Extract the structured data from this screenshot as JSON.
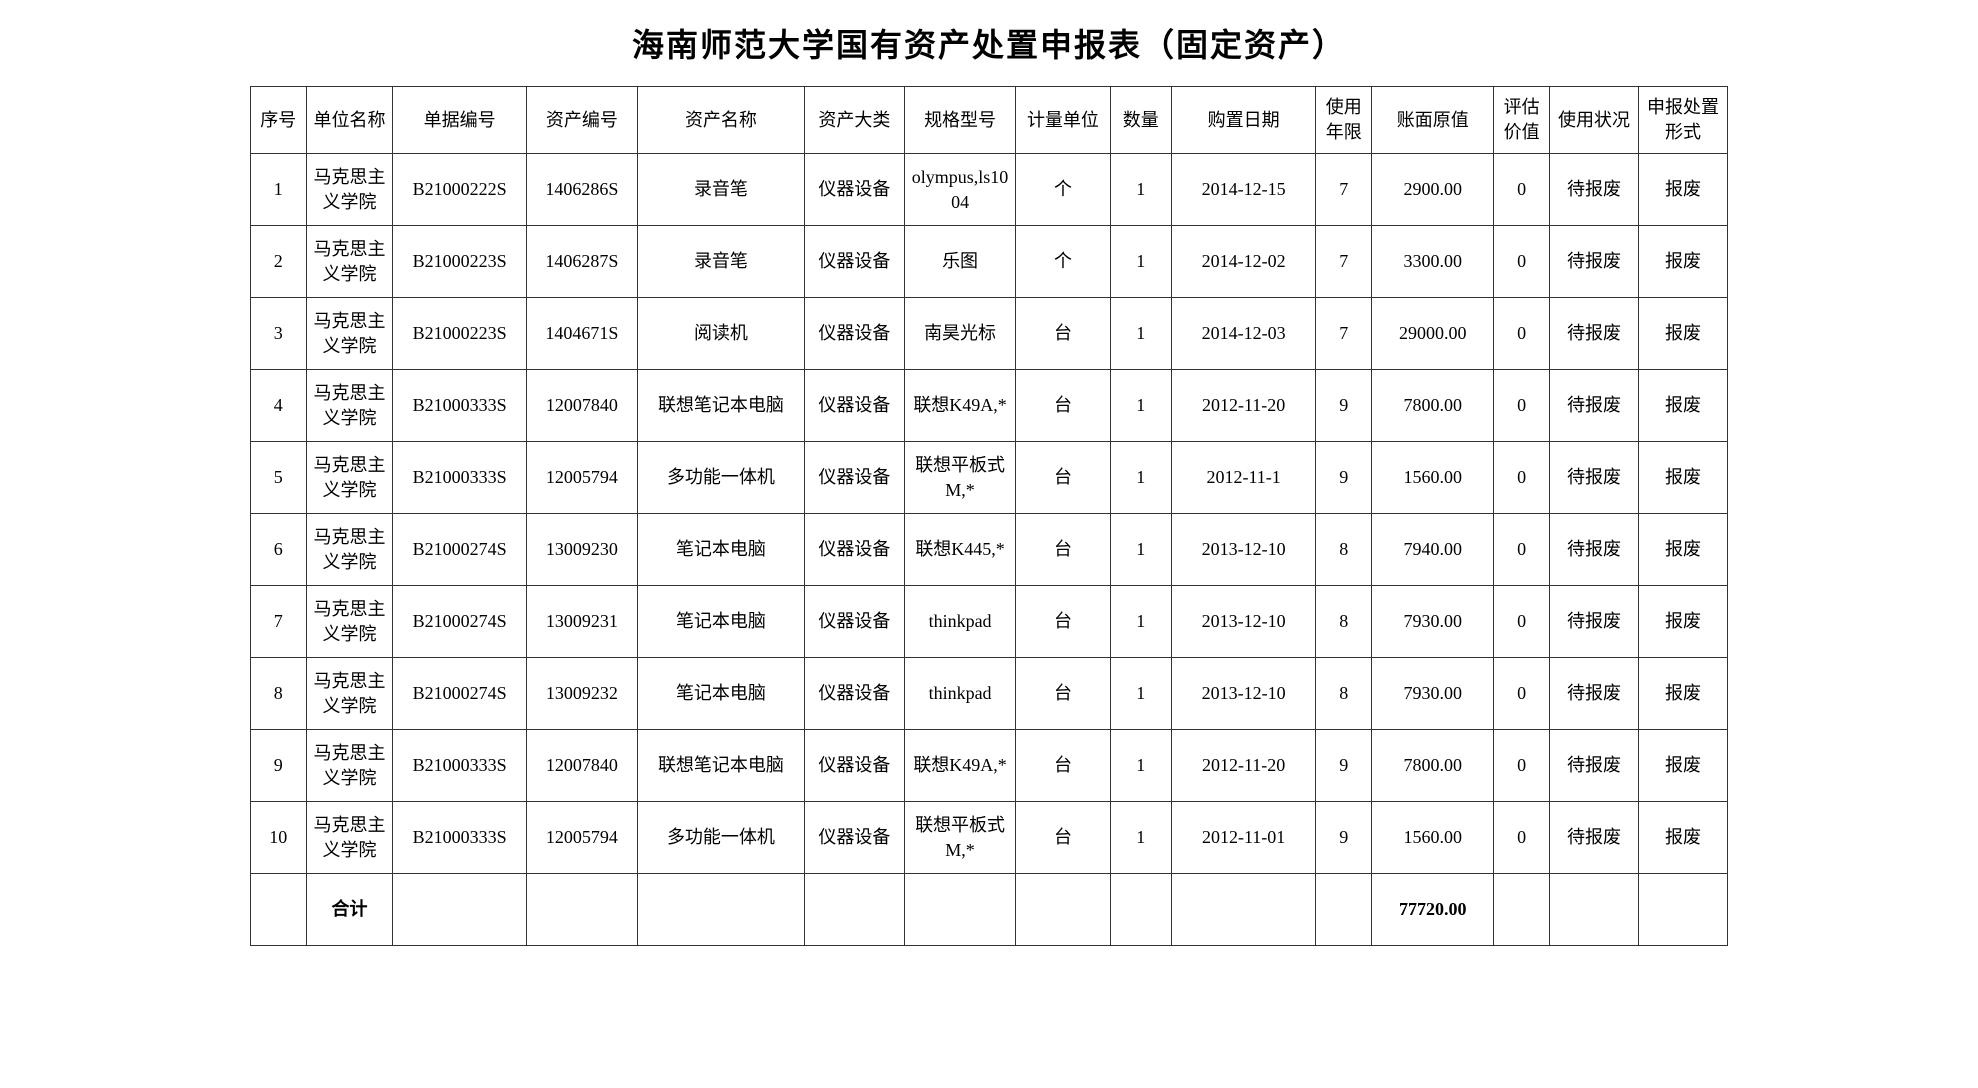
{
  "title": "海南师范大学国有资产处置申报表（固定资产）",
  "columns": [
    "序号",
    "单位名称",
    "单据编号",
    "资产编号",
    "资产名称",
    "资产大类",
    "规格型号",
    "计量单位",
    "数量",
    "购置日期",
    "使用年限",
    "账面原值",
    "评估价值",
    "使用状况",
    "申报处置形式"
  ],
  "rows": [
    {
      "seq": "1",
      "dept": "马克思主义学院",
      "docnum": "B21000222S",
      "assetnum": "1406286S",
      "assetname": "录音笔",
      "category": "仪器设备",
      "spec": "olympus,ls1004",
      "unit": "个",
      "qty": "1",
      "date": "2014-12-15",
      "years": "7",
      "value": "2900.00",
      "eval": "0",
      "status": "待报废",
      "disposal": "报废"
    },
    {
      "seq": "2",
      "dept": "马克思主义学院",
      "docnum": "B21000223S",
      "assetnum": "1406287S",
      "assetname": "录音笔",
      "category": "仪器设备",
      "spec": "乐图",
      "unit": "个",
      "qty": "1",
      "date": "2014-12-02",
      "years": "7",
      "value": "3300.00",
      "eval": "0",
      "status": "待报废",
      "disposal": "报废"
    },
    {
      "seq": "3",
      "dept": "马克思主义学院",
      "docnum": "B21000223S",
      "assetnum": "1404671S",
      "assetname": "阅读机",
      "category": "仪器设备",
      "spec": "南昊光标",
      "unit": "台",
      "qty": "1",
      "date": "2014-12-03",
      "years": "7",
      "value": "29000.00",
      "eval": "0",
      "status": "待报废",
      "disposal": "报废"
    },
    {
      "seq": "4",
      "dept": "马克思主义学院",
      "docnum": "B21000333S",
      "assetnum": "12007840",
      "assetname": "联想笔记本电脑",
      "category": "仪器设备",
      "spec": "联想K49A,*",
      "unit": "台",
      "qty": "1",
      "date": "2012-11-20",
      "years": "9",
      "value": "7800.00",
      "eval": "0",
      "status": "待报废",
      "disposal": "报废"
    },
    {
      "seq": "5",
      "dept": "马克思主义学院",
      "docnum": "B21000333S",
      "assetnum": "12005794",
      "assetname": "多功能一体机",
      "category": "仪器设备",
      "spec": "联想平板式M,*",
      "unit": "台",
      "qty": "1",
      "date": "2012-11-1",
      "years": "9",
      "value": "1560.00",
      "eval": "0",
      "status": "待报废",
      "disposal": "报废"
    },
    {
      "seq": "6",
      "dept": "马克思主义学院",
      "docnum": "B21000274S",
      "assetnum": "13009230",
      "assetname": "笔记本电脑",
      "category": "仪器设备",
      "spec": "联想K445,*",
      "unit": "台",
      "qty": "1",
      "date": "2013-12-10",
      "years": "8",
      "value": "7940.00",
      "eval": "0",
      "status": "待报废",
      "disposal": "报废"
    },
    {
      "seq": "7",
      "dept": "马克思主义学院",
      "docnum": "B21000274S",
      "assetnum": "13009231",
      "assetname": "笔记本电脑",
      "category": "仪器设备",
      "spec": "thinkpad",
      "unit": "台",
      "qty": "1",
      "date": "2013-12-10",
      "years": "8",
      "value": "7930.00",
      "eval": "0",
      "status": "待报废",
      "disposal": "报废"
    },
    {
      "seq": "8",
      "dept": "马克思主义学院",
      "docnum": "B21000274S",
      "assetnum": "13009232",
      "assetname": "笔记本电脑",
      "category": "仪器设备",
      "spec": "thinkpad",
      "unit": "台",
      "qty": "1",
      "date": "2013-12-10",
      "years": "8",
      "value": "7930.00",
      "eval": "0",
      "status": "待报废",
      "disposal": "报废"
    },
    {
      "seq": "9",
      "dept": "马克思主义学院",
      "docnum": "B21000333S",
      "assetnum": "12007840",
      "assetname": "联想笔记本电脑",
      "category": "仪器设备",
      "spec": "联想K49A,*",
      "unit": "台",
      "qty": "1",
      "date": "2012-11-20",
      "years": "9",
      "value": "7800.00",
      "eval": "0",
      "status": "待报废",
      "disposal": "报废"
    },
    {
      "seq": "10",
      "dept": "马克思主义学院",
      "docnum": "B21000333S",
      "assetnum": "12005794",
      "assetname": "多功能一体机",
      "category": "仪器设备",
      "spec": "联想平板式M,*",
      "unit": "台",
      "qty": "1",
      "date": "2012-11-01",
      "years": "9",
      "value": "1560.00",
      "eval": "0",
      "status": "待报废",
      "disposal": "报废"
    }
  ],
  "total": {
    "label": "合计",
    "value": "77720.00"
  },
  "style": {
    "background_color": "#ffffff",
    "border_color": "#333333",
    "title_fontsize": 32,
    "header_fontsize": 18,
    "cell_fontsize": 18,
    "font_family": "SimSun"
  }
}
